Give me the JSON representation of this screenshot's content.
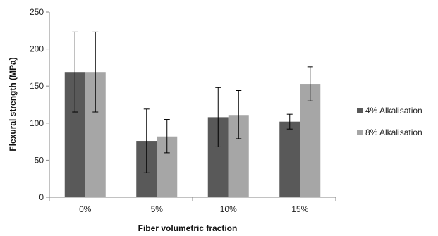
{
  "chart_data": {
    "type": "bar",
    "title": "",
    "xlabel": "Fiber volumetric fraction",
    "ylabel": "Flexural strength (MPa)",
    "categories": [
      "0%",
      "5%",
      "10%",
      "15%"
    ],
    "ylim": [
      0,
      250
    ],
    "yticks": [
      0,
      50,
      100,
      150,
      200,
      250
    ],
    "grid": false,
    "legend_position": "right",
    "series": [
      {
        "name": "4% Alkalisation",
        "color": "#595959",
        "values": [
          169,
          76,
          108,
          102
        ],
        "error_low": [
          115,
          33,
          68,
          92
        ],
        "error_high": [
          223,
          119,
          148,
          112
        ]
      },
      {
        "name": "8% Alkalisation",
        "color": "#a6a6a6",
        "values": [
          169,
          82,
          111,
          153
        ],
        "error_low": [
          115,
          60,
          79,
          130
        ],
        "error_high": [
          223,
          105,
          144,
          176
        ]
      }
    ]
  }
}
